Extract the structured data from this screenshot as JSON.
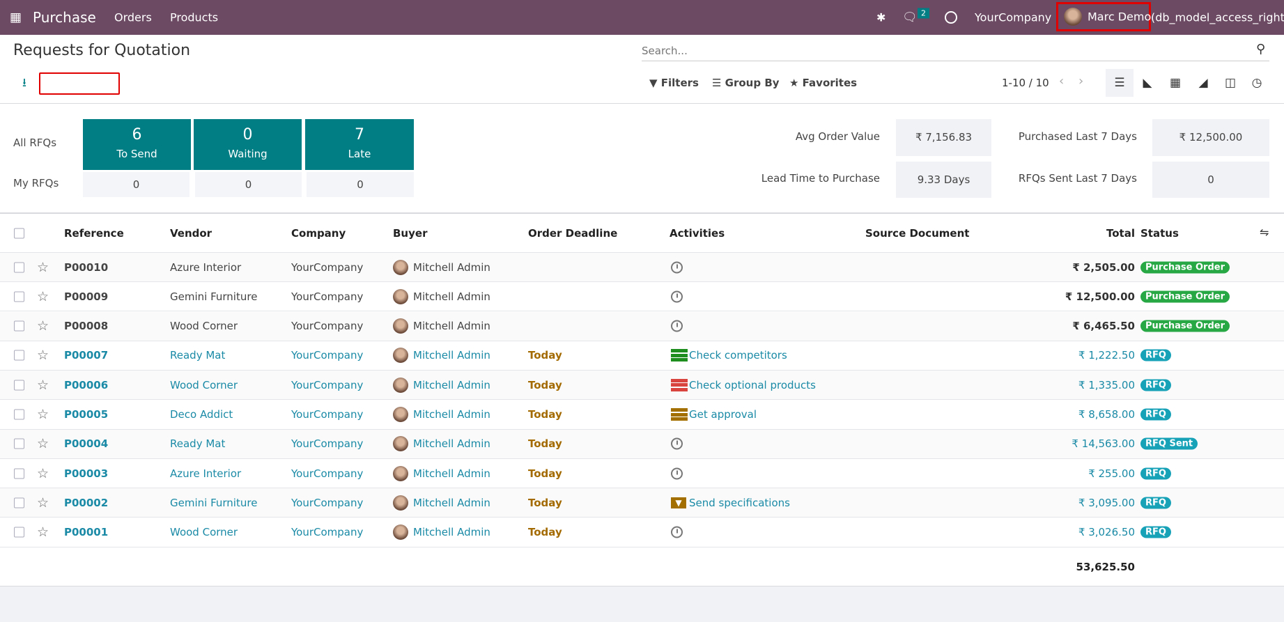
{
  "navbar": {
    "app": "Purchase",
    "menu": [
      "Orders",
      "Products"
    ],
    "messages_count": "2",
    "company": "YourCompany",
    "user": "Marc Demo",
    "db": "(db_model_access_right)",
    "color": "#6c4a63"
  },
  "control": {
    "title": "Requests for Quotation",
    "search_placeholder": "Search...",
    "filters": "Filters",
    "group_by": "Group By",
    "favorites": "Favorites",
    "pager": "1-10 / 10"
  },
  "dashboard": {
    "all_label": "All RFQs",
    "my_label": "My RFQs",
    "tiles": [
      {
        "value": "6",
        "label": "To Send",
        "my": "0"
      },
      {
        "value": "0",
        "label": "Waiting",
        "my": "0"
      },
      {
        "value": "7",
        "label": "Late",
        "my": "0"
      }
    ],
    "stats": [
      {
        "label": "Avg Order Value",
        "value": "₹ 7,156.83"
      },
      {
        "label": "Purchased Last 7 Days",
        "value": "₹ 12,500.00"
      },
      {
        "label": "Lead Time to Purchase",
        "value": "9.33 Days"
      },
      {
        "label": "RFQs Sent Last 7 Days",
        "value": "0"
      }
    ]
  },
  "table": {
    "headers": [
      "Reference",
      "Vendor",
      "Company",
      "Buyer",
      "Order Deadline",
      "Activities",
      "Source Document",
      "Total",
      "Status"
    ],
    "rows": [
      {
        "ref": "P00010",
        "vendor": "Azure Interior",
        "company": "YourCompany",
        "buyer": "Mitchell Admin",
        "deadline": "",
        "activity": "",
        "activity_icon": "clock",
        "total": "₹ 2,505.00",
        "status": "Purchase Order"
      },
      {
        "ref": "P00009",
        "vendor": "Gemini Furniture",
        "company": "YourCompany",
        "buyer": "Mitchell Admin",
        "deadline": "",
        "activity": "",
        "activity_icon": "clock",
        "total": "₹ 12,500.00",
        "status": "Purchase Order"
      },
      {
        "ref": "P00008",
        "vendor": "Wood Corner",
        "company": "YourCompany",
        "buyer": "Mitchell Admin",
        "deadline": "",
        "activity": "",
        "activity_icon": "clock",
        "total": "₹ 6,465.50",
        "status": "Purchase Order"
      },
      {
        "ref": "P00007",
        "vendor": "Ready Mat",
        "company": "YourCompany",
        "buyer": "Mitchell Admin",
        "deadline": "Today",
        "activity": "Check competitors",
        "activity_icon": "tasks-green",
        "total": "₹ 1,222.50",
        "status": "RFQ"
      },
      {
        "ref": "P00006",
        "vendor": "Wood Corner",
        "company": "YourCompany",
        "buyer": "Mitchell Admin",
        "deadline": "Today",
        "activity": "Check optional products",
        "activity_icon": "tasks-red",
        "total": "₹ 1,335.00",
        "status": "RFQ"
      },
      {
        "ref": "P00005",
        "vendor": "Deco Addict",
        "company": "YourCompany",
        "buyer": "Mitchell Admin",
        "deadline": "Today",
        "activity": "Get approval",
        "activity_icon": "tasks-amber",
        "total": "₹ 8,658.00",
        "status": "RFQ"
      },
      {
        "ref": "P00004",
        "vendor": "Ready Mat",
        "company": "YourCompany",
        "buyer": "Mitchell Admin",
        "deadline": "Today",
        "activity": "",
        "activity_icon": "clock",
        "total": "₹ 14,563.00",
        "status": "RFQ Sent"
      },
      {
        "ref": "P00003",
        "vendor": "Azure Interior",
        "company": "YourCompany",
        "buyer": "Mitchell Admin",
        "deadline": "Today",
        "activity": "",
        "activity_icon": "clock",
        "total": "₹ 255.00",
        "status": "RFQ"
      },
      {
        "ref": "P00002",
        "vendor": "Gemini Furniture",
        "company": "YourCompany",
        "buyer": "Mitchell Admin",
        "deadline": "Today",
        "activity": "Send specifications",
        "activity_icon": "envelope-amber",
        "total": "₹ 3,095.00",
        "status": "RFQ"
      },
      {
        "ref": "P00001",
        "vendor": "Wood Corner",
        "company": "YourCompany",
        "buyer": "Mitchell Admin",
        "deadline": "Today",
        "activity": "",
        "activity_icon": "clock",
        "total": "₹ 3,026.50",
        "status": "RFQ"
      }
    ],
    "grand_total": "53,625.50"
  },
  "colors": {
    "accent": "#017e84",
    "link": "#1a8aa6",
    "today": "#a36a00",
    "purchase_order": "#28a745",
    "rfq": "#17a2b8"
  }
}
